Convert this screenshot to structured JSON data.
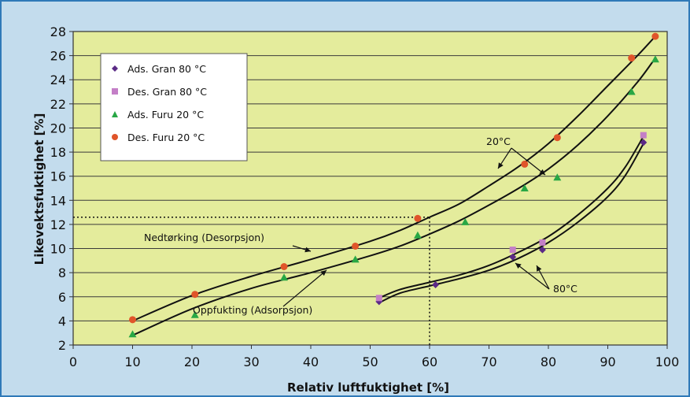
{
  "colors": {
    "plot_bg": "#e4ec9c",
    "frame_bg": "#c3dced",
    "frame_border": "#2f79b8",
    "ads_gran": "#5b2a86",
    "des_gran": "#c47fc7",
    "ads_furu": "#28a745",
    "des_furu": "#e0552a"
  },
  "chart_data": {
    "type": "scatter",
    "title": "",
    "xlabel": "Relativ luftfuktighet [%]",
    "ylabel": "Likevektsfuktighet [%]",
    "xlim": [
      0,
      100
    ],
    "ylim": [
      2,
      28
    ],
    "xticks": [
      0,
      10,
      20,
      30,
      40,
      50,
      60,
      70,
      80,
      90,
      100
    ],
    "yticks": [
      2,
      4,
      6,
      8,
      10,
      12,
      14,
      16,
      18,
      20,
      22,
      24,
      26,
      28
    ],
    "grid": "horizontal",
    "legend_position": "top-left",
    "series": [
      {
        "name": "Ads. Gran 80 °C",
        "marker": "diamond",
        "color": "#5b2a86",
        "points": [
          [
            51.5,
            5.6
          ],
          [
            61,
            7.0
          ],
          [
            74,
            9.3
          ],
          [
            79,
            9.9
          ],
          [
            96,
            18.8
          ]
        ]
      },
      {
        "name": "Des. Gran 80 °C",
        "marker": "square",
        "color": "#c47fc7",
        "points": [
          [
            51.5,
            5.9
          ],
          [
            74,
            9.9
          ],
          [
            79,
            10.5
          ],
          [
            96,
            19.4
          ]
        ]
      },
      {
        "name": "Ads. Furu 20 °C",
        "marker": "triangle",
        "color": "#28a745",
        "points": [
          [
            10,
            2.9
          ],
          [
            20.5,
            4.5
          ],
          [
            35.5,
            7.6
          ],
          [
            47.5,
            9.1
          ],
          [
            58,
            11.1
          ],
          [
            66,
            12.2
          ],
          [
            76,
            15.0
          ],
          [
            81.5,
            15.9
          ],
          [
            94,
            23.0
          ],
          [
            98,
            25.7
          ]
        ]
      },
      {
        "name": "Des. Furu 20 °C",
        "marker": "circle",
        "color": "#e0552a",
        "points": [
          [
            10,
            4.1
          ],
          [
            20.5,
            6.2
          ],
          [
            35.5,
            8.5
          ],
          [
            47.5,
            10.2
          ],
          [
            58,
            12.5
          ],
          [
            76,
            17.0
          ],
          [
            81.5,
            19.2
          ],
          [
            94,
            25.8
          ],
          [
            98,
            27.6
          ]
        ]
      }
    ],
    "curves": [
      {
        "name": "des20",
        "points": [
          [
            10,
            4.0
          ],
          [
            20,
            6.1
          ],
          [
            30,
            7.7
          ],
          [
            40,
            9.1
          ],
          [
            50,
            10.6
          ],
          [
            55,
            11.5
          ],
          [
            60,
            12.6
          ],
          [
            65,
            13.7
          ],
          [
            70,
            15.2
          ],
          [
            75,
            16.8
          ],
          [
            80,
            18.7
          ],
          [
            85,
            21.0
          ],
          [
            90,
            23.5
          ],
          [
            95,
            26.0
          ],
          [
            98,
            27.6
          ]
        ]
      },
      {
        "name": "ads20",
        "points": [
          [
            10,
            2.8
          ],
          [
            20,
            5.0
          ],
          [
            30,
            6.7
          ],
          [
            40,
            8.0
          ],
          [
            50,
            9.4
          ],
          [
            55,
            10.2
          ],
          [
            60,
            11.2
          ],
          [
            65,
            12.3
          ],
          [
            70,
            13.6
          ],
          [
            75,
            15.0
          ],
          [
            80,
            16.6
          ],
          [
            85,
            18.6
          ],
          [
            90,
            21.0
          ],
          [
            95,
            23.8
          ],
          [
            98,
            25.8
          ]
        ]
      },
      {
        "name": "des80",
        "points": [
          [
            51.5,
            5.9
          ],
          [
            55,
            6.6
          ],
          [
            60,
            7.2
          ],
          [
            65,
            7.8
          ],
          [
            70,
            8.6
          ],
          [
            75,
            9.7
          ],
          [
            80,
            11.0
          ],
          [
            85,
            12.8
          ],
          [
            90,
            15.0
          ],
          [
            93,
            16.8
          ],
          [
            96,
            19.3
          ]
        ]
      },
      {
        "name": "ads80",
        "points": [
          [
            51.5,
            5.5
          ],
          [
            55,
            6.3
          ],
          [
            60,
            6.9
          ],
          [
            65,
            7.5
          ],
          [
            70,
            8.2
          ],
          [
            75,
            9.2
          ],
          [
            80,
            10.5
          ],
          [
            85,
            12.2
          ],
          [
            90,
            14.3
          ],
          [
            93,
            16.1
          ],
          [
            96,
            18.7
          ]
        ]
      }
    ],
    "reference_lines": {
      "x": 60,
      "y": 12.6
    },
    "annotations": {
      "label_20": "20°C",
      "label_80": "80°C",
      "desorption": "Nedtørking (Desorpsjon)",
      "adsorption": "Oppfukting (Adsorpsjon)"
    }
  }
}
